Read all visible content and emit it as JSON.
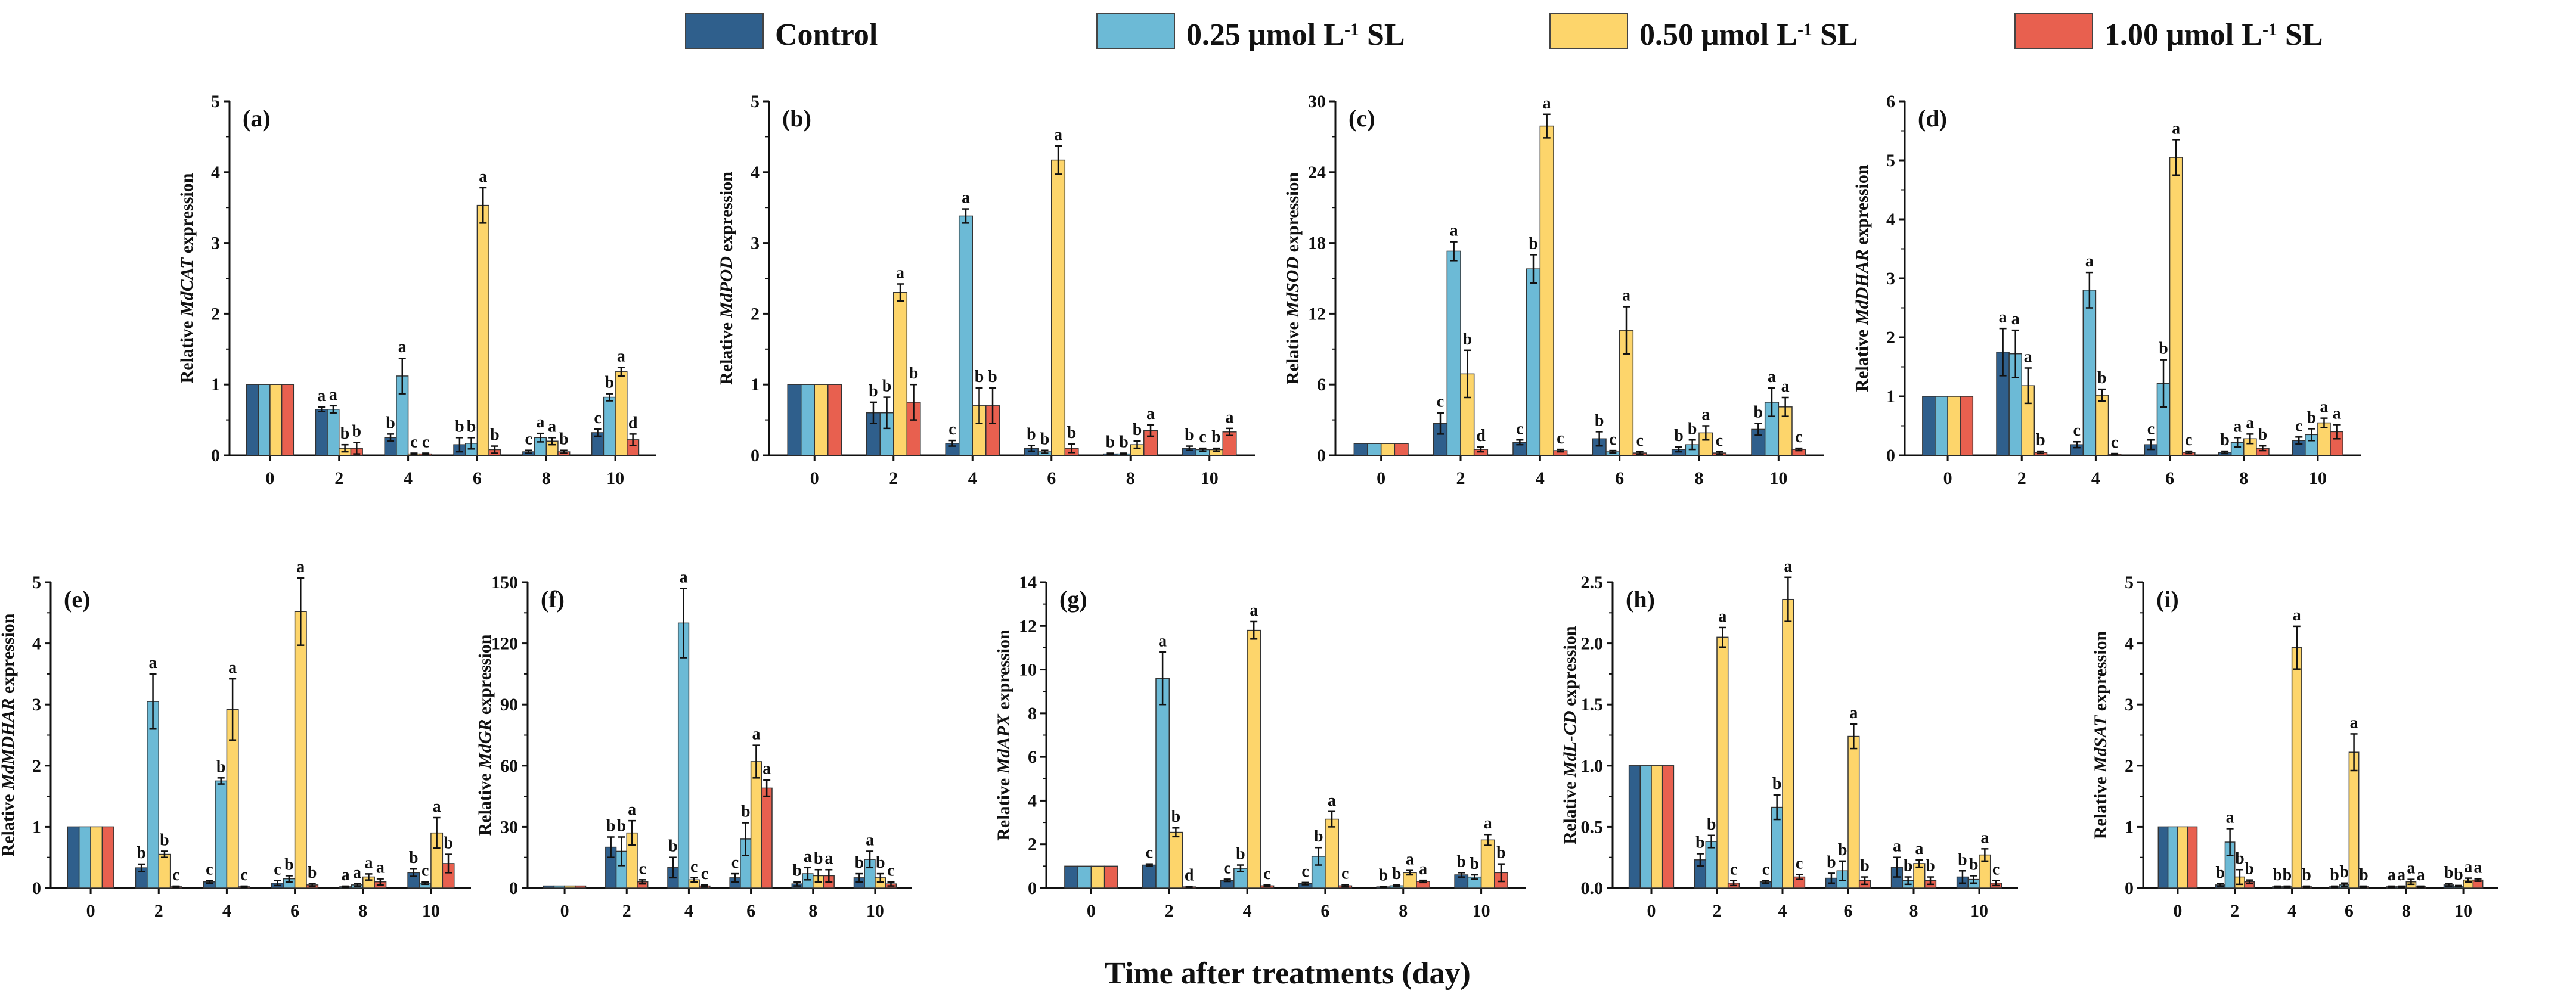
{
  "chart_data": [
    {
      "type": "bar",
      "panel": "(a)",
      "ylabel": {
        "prefix": "Relative ",
        "gene": "MdCAT",
        "suffix": " expression"
      },
      "ylim": [
        0,
        5
      ],
      "yticks": [
        "0",
        "1",
        "2",
        "3",
        "4",
        "5"
      ],
      "values": [
        [
          1,
          0.65,
          0.25,
          0.15,
          0.05,
          0.32
        ],
        [
          1,
          0.65,
          1.12,
          0.17,
          0.25,
          0.82
        ],
        [
          1,
          0.1,
          0.02,
          3.53,
          0.2,
          1.18
        ],
        [
          1,
          0.1,
          0.02,
          0.08,
          0.05,
          0.22
        ]
      ],
      "errors": [
        [
          0,
          0.03,
          0.05,
          0.1,
          0.02,
          0.05
        ],
        [
          0,
          0.05,
          0.25,
          0.08,
          0.06,
          0.05
        ],
        [
          0,
          0.05,
          0.01,
          0.25,
          0.05,
          0.06
        ],
        [
          0,
          0.08,
          0.01,
          0.05,
          0.02,
          0.08
        ]
      ],
      "letters": [
        [
          "",
          "a",
          "b",
          "b",
          "c",
          "c"
        ],
        [
          "",
          "a",
          "a",
          "b",
          "a",
          "b"
        ],
        [
          "",
          "b",
          "c",
          "a",
          "a",
          "a"
        ],
        [
          "",
          "b",
          "c",
          "b",
          "b",
          "d"
        ]
      ]
    },
    {
      "type": "bar",
      "panel": "(b)",
      "ylabel": {
        "prefix": "Relative ",
        "gene": "MdPOD",
        "suffix": " expression"
      },
      "ylim": [
        0,
        5
      ],
      "yticks": [
        "0",
        "1",
        "2",
        "3",
        "4",
        "5"
      ],
      "values": [
        [
          1,
          0.6,
          0.17,
          0.1,
          0.02,
          0.1
        ],
        [
          1,
          0.6,
          3.38,
          0.05,
          0.02,
          0.08
        ],
        [
          1,
          2.3,
          0.7,
          4.17,
          0.15,
          0.08
        ],
        [
          1,
          0.75,
          0.7,
          0.1,
          0.35,
          0.33
        ]
      ],
      "errors": [
        [
          0,
          0.15,
          0.04,
          0.04,
          0.01,
          0.03
        ],
        [
          0,
          0.22,
          0.1,
          0.02,
          0.01,
          0.02
        ],
        [
          0,
          0.12,
          0.25,
          0.2,
          0.05,
          0.02
        ],
        [
          0,
          0.25,
          0.25,
          0.06,
          0.08,
          0.05
        ]
      ],
      "letters": [
        [
          "",
          "b",
          "c",
          "b",
          "b",
          "b"
        ],
        [
          "",
          "b",
          "a",
          "b",
          "b",
          "c"
        ],
        [
          "",
          "a",
          "b",
          "a",
          "b",
          "b"
        ],
        [
          "",
          "b",
          "b",
          "b",
          "a",
          "a"
        ]
      ]
    },
    {
      "type": "bar",
      "panel": "(c)",
      "ylabel": {
        "prefix": "Relative ",
        "gene": "MdSOD",
        "suffix": " expression"
      },
      "ylim": [
        0,
        30
      ],
      "yticks": [
        "0",
        "6",
        "12",
        "18",
        "24",
        "30"
      ],
      "values": [
        [
          1,
          2.7,
          1.1,
          1.4,
          0.5,
          2.2
        ],
        [
          1,
          17.3,
          15.8,
          0.3,
          0.9,
          4.5
        ],
        [
          1,
          6.9,
          27.9,
          10.6,
          1.9,
          4.1
        ],
        [
          1,
          0.5,
          0.4,
          0.2,
          0.2,
          0.5
        ]
      ],
      "errors": [
        [
          0,
          0.9,
          0.2,
          0.6,
          0.2,
          0.5
        ],
        [
          0,
          0.8,
          1.2,
          0.1,
          0.4,
          1.2
        ],
        [
          0,
          2.0,
          1.0,
          2.0,
          0.6,
          0.8
        ],
        [
          0,
          0.2,
          0.1,
          0.1,
          0.1,
          0.1
        ]
      ],
      "letters": [
        [
          "",
          "c",
          "c",
          "b",
          "b",
          "b"
        ],
        [
          "",
          "a",
          "b",
          "c",
          "b",
          "a"
        ],
        [
          "",
          "b",
          "a",
          "a",
          "a",
          "a"
        ],
        [
          "",
          "d",
          "c",
          "c",
          "c",
          "c"
        ]
      ]
    },
    {
      "type": "bar",
      "panel": "(d)",
      "ylabel": {
        "prefix": "Relative ",
        "gene": "MdDHAR",
        "suffix": " expression"
      },
      "ylim": [
        0,
        6
      ],
      "yticks": [
        "0",
        "1",
        "2",
        "3",
        "4",
        "5",
        "6"
      ],
      "values": [
        [
          1,
          1.75,
          0.18,
          0.18,
          0.05,
          0.25
        ],
        [
          1,
          1.72,
          2.8,
          1.22,
          0.22,
          0.35
        ],
        [
          1,
          1.18,
          1.02,
          5.05,
          0.28,
          0.55
        ],
        [
          1,
          0.05,
          0.02,
          0.05,
          0.12,
          0.4
        ]
      ],
      "errors": [
        [
          0,
          0.4,
          0.05,
          0.08,
          0.02,
          0.06
        ],
        [
          0,
          0.4,
          0.3,
          0.4,
          0.08,
          0.1
        ],
        [
          0,
          0.3,
          0.1,
          0.3,
          0.08,
          0.08
        ],
        [
          0,
          0.02,
          0.01,
          0.02,
          0.04,
          0.12
        ]
      ],
      "letters": [
        [
          "",
          "a",
          "c",
          "c",
          "b",
          "c"
        ],
        [
          "",
          "a",
          "a",
          "b",
          "a",
          "b"
        ],
        [
          "",
          "a",
          "b",
          "a",
          "a",
          "a"
        ],
        [
          "",
          "b",
          "c",
          "c",
          "b",
          "a"
        ]
      ]
    },
    {
      "type": "bar",
      "panel": "(e)",
      "ylabel": {
        "prefix": "Relative ",
        "gene": "MdMDHAR",
        "suffix": " expression"
      },
      "ylim": [
        0,
        5
      ],
      "yticks": [
        "0",
        "1",
        "2",
        "3",
        "4",
        "5"
      ],
      "values": [
        [
          1,
          0.33,
          0.1,
          0.08,
          0.02,
          0.25
        ],
        [
          1,
          3.05,
          1.75,
          0.15,
          0.05,
          0.08
        ],
        [
          1,
          0.55,
          2.92,
          4.52,
          0.18,
          0.9
        ],
        [
          1,
          0.02,
          0.02,
          0.05,
          0.1,
          0.4
        ]
      ],
      "errors": [
        [
          0,
          0.06,
          0.02,
          0.04,
          0.01,
          0.06
        ],
        [
          0,
          0.45,
          0.05,
          0.05,
          0.02,
          0.02
        ],
        [
          0,
          0.05,
          0.5,
          0.55,
          0.05,
          0.25
        ],
        [
          0,
          0.01,
          0.01,
          0.02,
          0.05,
          0.15
        ]
      ],
      "letters": [
        [
          "",
          "b",
          "c",
          "c",
          "a",
          "b"
        ],
        [
          "",
          "a",
          "b",
          "b",
          "a",
          "c"
        ],
        [
          "",
          "b",
          "a",
          "a",
          "a",
          "a"
        ],
        [
          "",
          "c",
          "c",
          "b",
          "a",
          "b"
        ]
      ]
    },
    {
      "type": "bar",
      "panel": "(f)",
      "ylabel": {
        "prefix": "Relative ",
        "gene": "MdGR",
        "suffix": " expression"
      },
      "ylim": [
        0,
        150
      ],
      "yticks": [
        "0",
        "30",
        "60",
        "90",
        "120",
        "150"
      ],
      "values": [
        [
          1,
          20,
          10,
          5,
          2,
          5
        ],
        [
          1,
          18,
          130,
          24,
          7,
          14
        ],
        [
          1,
          27,
          4,
          62,
          6,
          5
        ],
        [
          1,
          3,
          1,
          49,
          6,
          2
        ]
      ],
      "errors": [
        [
          0,
          5,
          5,
          2,
          1,
          2
        ],
        [
          0,
          7,
          17,
          8,
          3,
          4
        ],
        [
          0,
          6,
          1,
          8,
          3,
          2
        ],
        [
          0,
          1,
          0.5,
          4,
          3,
          1
        ]
      ],
      "letters": [
        [
          "",
          "b",
          "b",
          "c",
          "b",
          "b"
        ],
        [
          "",
          "b",
          "a",
          "b",
          "a",
          "a"
        ],
        [
          "",
          "a",
          "c",
          "a",
          "b",
          "b"
        ],
        [
          "",
          "c",
          "c",
          "a",
          "a",
          "c"
        ]
      ]
    },
    {
      "type": "bar",
      "panel": "(g)",
      "ylabel": {
        "prefix": "Relative ",
        "gene": "MdAPX",
        "suffix": " expression"
      },
      "ylim": [
        0,
        14
      ],
      "yticks": [
        "0",
        "2",
        "4",
        "6",
        "8",
        "10",
        "12",
        "14"
      ],
      "values": [
        [
          1,
          1.05,
          0.35,
          0.2,
          0.05,
          0.6
        ],
        [
          1,
          9.6,
          0.9,
          1.45,
          0.1,
          0.5
        ],
        [
          1,
          2.55,
          11.8,
          3.15,
          0.7,
          2.2
        ],
        [
          1,
          0.05,
          0.1,
          0.1,
          0.3,
          0.7
        ]
      ],
      "errors": [
        [
          0,
          0.05,
          0.05,
          0.05,
          0.02,
          0.1
        ],
        [
          0,
          1.2,
          0.15,
          0.4,
          0.04,
          0.1
        ],
        [
          0,
          0.2,
          0.4,
          0.35,
          0.1,
          0.25
        ],
        [
          0,
          0.02,
          0.03,
          0.05,
          0.05,
          0.4
        ]
      ],
      "letters": [
        [
          "",
          "c",
          "c",
          "c",
          "b",
          "b"
        ],
        [
          "",
          "a",
          "b",
          "b",
          "b",
          "b"
        ],
        [
          "",
          "b",
          "a",
          "a",
          "a",
          "a"
        ],
        [
          "",
          "d",
          "c",
          "c",
          "a",
          "b"
        ]
      ]
    },
    {
      "type": "bar",
      "panel": "(h)",
      "ylabel": {
        "prefix": "Relative ",
        "gene": "MdL-CD",
        "suffix": " expression"
      },
      "ylim": [
        0,
        2.5
      ],
      "yticks": [
        "0.0",
        "0.5",
        "1.0",
        "1.5",
        "2.0",
        "2.5"
      ],
      "values": [
        [
          1,
          0.23,
          0.05,
          0.08,
          0.17,
          0.09
        ],
        [
          1,
          0.38,
          0.66,
          0.14,
          0.06,
          0.07
        ],
        [
          1,
          2.05,
          2.36,
          1.24,
          0.2,
          0.27
        ],
        [
          1,
          0.04,
          0.09,
          0.06,
          0.06,
          0.04
        ]
      ],
      "errors": [
        [
          0,
          0.05,
          0.01,
          0.04,
          0.08,
          0.05
        ],
        [
          0,
          0.05,
          0.1,
          0.08,
          0.03,
          0.03
        ],
        [
          0,
          0.08,
          0.18,
          0.1,
          0.03,
          0.05
        ],
        [
          0,
          0.02,
          0.02,
          0.03,
          0.03,
          0.02
        ]
      ],
      "letters": [
        [
          "",
          "b",
          "c",
          "b",
          "a",
          "b"
        ],
        [
          "",
          "b",
          "b",
          "b",
          "b",
          "b"
        ],
        [
          "",
          "a",
          "a",
          "a",
          "a",
          "a"
        ],
        [
          "",
          "c",
          "c",
          "b",
          "b",
          "c"
        ]
      ]
    },
    {
      "type": "bar",
      "panel": "(i)",
      "ylabel": {
        "prefix": "Relative ",
        "gene": "MdSAT",
        "suffix": " expression"
      },
      "ylim": [
        0,
        5
      ],
      "yticks": [
        "0",
        "1",
        "2",
        "3",
        "4",
        "5"
      ],
      "values": [
        [
          1,
          0.05,
          0.02,
          0.02,
          0.02,
          0.05
        ],
        [
          1,
          0.75,
          0.02,
          0.05,
          0.02,
          0.03
        ],
        [
          1,
          0.18,
          3.93,
          2.22,
          0.1,
          0.13
        ],
        [
          1,
          0.1,
          0.02,
          0.02,
          0.02,
          0.13
        ]
      ],
      "errors": [
        [
          0,
          0.02,
          0.01,
          0.01,
          0.01,
          0.02
        ],
        [
          0,
          0.22,
          0.01,
          0.03,
          0.01,
          0.01
        ],
        [
          0,
          0.12,
          0.35,
          0.3,
          0.04,
          0.03
        ],
        [
          0,
          0.03,
          0.01,
          0.01,
          0.01,
          0.02
        ]
      ],
      "letters": [
        [
          "",
          "b",
          "b",
          "b",
          "a",
          "b"
        ],
        [
          "",
          "a",
          "b",
          "b",
          "a",
          "b"
        ],
        [
          "",
          "b",
          "a",
          "a",
          "a",
          "a"
        ],
        [
          "",
          "b",
          "b",
          "b",
          "a",
          "a"
        ]
      ]
    }
  ],
  "categories": [
    "0",
    "2",
    "4",
    "6",
    "8",
    "10"
  ],
  "xlabel": "Time after treatments (day)",
  "legend": [
    {
      "name": "Control",
      "main": "Control",
      "sup": "",
      "tail": "",
      "color": "#2f5f8c"
    },
    {
      "name": "0.25 μmol L-1 SL",
      "main": "0.25 μmol L",
      "sup": "-1",
      "tail": " SL",
      "color": "#6cbad6"
    },
    {
      "name": "0.50 μmol L-1 SL",
      "main": "0.50 μmol L",
      "sup": "-1",
      "tail": "  SL",
      "color": "#fdd56b"
    },
    {
      "name": "1.00 μmol L-1 SL",
      "main": "1.00 μmol L",
      "sup": "-1",
      "tail": " SL",
      "color": "#e8604f"
    }
  ],
  "legend_placement": "top-center"
}
